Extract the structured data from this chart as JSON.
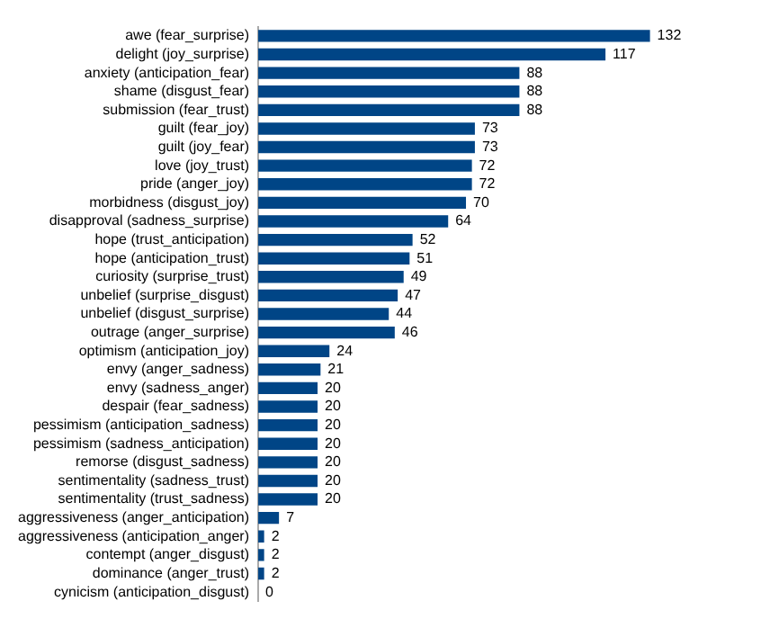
{
  "chart_data": {
    "type": "bar",
    "orientation": "horizontal",
    "data_labels": true,
    "color": "#004586",
    "tick_labels": "y",
    "grid": false,
    "legend": false,
    "categories": [
      "awe (fear_surprise)",
      "delight (joy_surprise)",
      "anxiety (anticipation_fear)",
      "shame (disgust_fear)",
      "submission (fear_trust)",
      "guilt (fear_joy)",
      "guilt (joy_fear)",
      "love (joy_trust)",
      "pride (anger_joy)",
      "morbidness (disgust_joy)",
      "disapproval (sadness_surprise)",
      "hope (trust_anticipation)",
      "hope (anticipation_trust)",
      "curiosity (surprise_trust)",
      "unbelief (surprise_disgust)",
      "unbelief (disgust_surprise)",
      "outrage (anger_surprise)",
      "optimism (anticipation_joy)",
      "envy (anger_sadness)",
      "envy (sadness_anger)",
      "despair (fear_sadness)",
      "pessimism (anticipation_sadness)",
      "pessimism (sadness_anticipation)",
      "remorse (disgust_sadness)",
      "sentimentality (sadness_trust)",
      "sentimentality (trust_sadness)",
      "aggressiveness (anger_anticipation)",
      "aggressiveness (anticipation_anger)",
      "contempt (anger_disgust)",
      "dominance (anger_trust)",
      "cynicism (anticipation_disgust)"
    ],
    "values": [
      132,
      117,
      88,
      88,
      88,
      73,
      73,
      72,
      72,
      70,
      64,
      52,
      51,
      49,
      47,
      44,
      46,
      24,
      21,
      20,
      20,
      20,
      20,
      20,
      20,
      20,
      7,
      2,
      2,
      2,
      0
    ]
  }
}
